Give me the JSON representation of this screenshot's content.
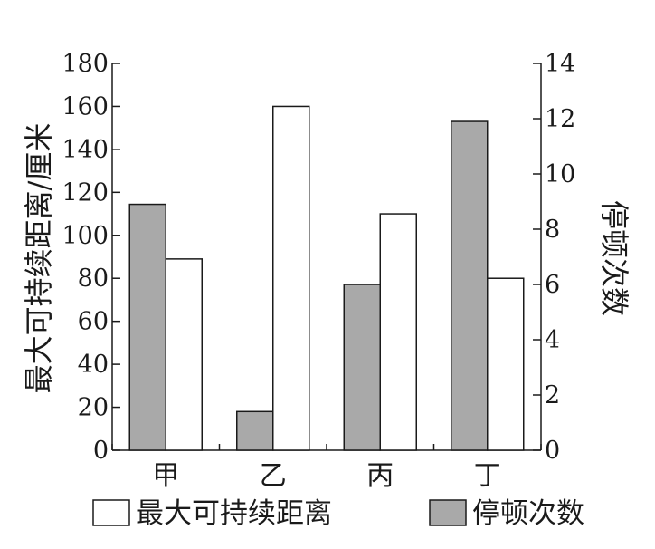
{
  "chart_data": {
    "type": "bar",
    "categories": [
      "甲",
      "乙",
      "丙",
      "丁"
    ],
    "series": [
      {
        "name": "停顿次数",
        "axis": "right",
        "values": [
          8.9,
          1.4,
          6.0,
          11.9
        ],
        "color": "#a9a9a9"
      },
      {
        "name": "最大可持续距离",
        "axis": "left",
        "values": [
          89,
          160,
          110,
          80
        ],
        "color": "#ffffff"
      }
    ],
    "ylabel": "最大可持续距离/厘米",
    "ylim": [
      0,
      180
    ],
    "yticks": [
      "0",
      "20",
      "40",
      "60",
      "80",
      "100",
      "120",
      "140",
      "160",
      "180"
    ],
    "y2label": "停顿次数",
    "y2lim": [
      0,
      14
    ],
    "y2ticks": [
      "0",
      "2",
      "4",
      "6",
      "8",
      "10",
      "12",
      "14"
    ],
    "legend": {
      "position": "bottom",
      "items": [
        "最大可持续距离",
        "停顿次数"
      ]
    },
    "grid": false
  }
}
